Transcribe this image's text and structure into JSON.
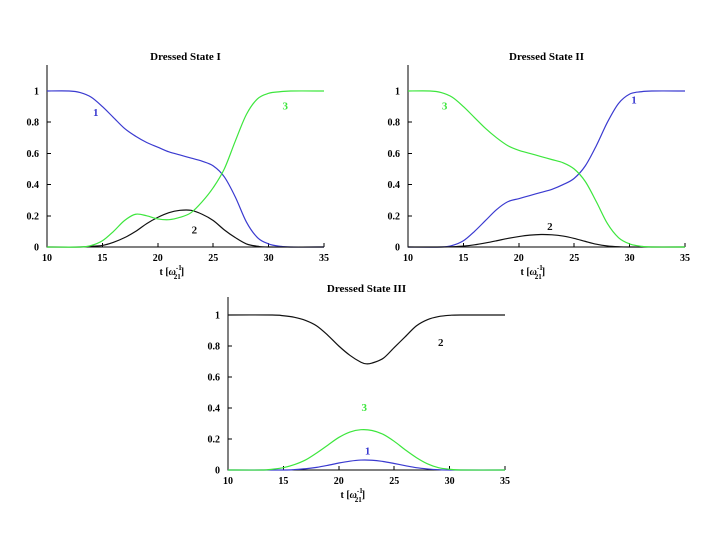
{
  "colors": {
    "1": "#3a3ad0",
    "2": "#111111",
    "3": "#3de63d"
  },
  "chart_data": [
    {
      "type": "line",
      "title": "Dressed State I",
      "xlabel_main": "t",
      "xlabel_sym": "ω",
      "xlabel_sub": "21",
      "xlabel_sup": "-1",
      "xlim": [
        10,
        35
      ],
      "ylim": [
        0,
        1.1
      ],
      "xticks": [
        "10",
        "15",
        "20",
        "25",
        "30",
        "35"
      ],
      "yticks": [
        "0",
        "0.2",
        "0.4",
        "0.6",
        "0.8",
        "1"
      ],
      "series": [
        {
          "name": "1",
          "label_pos": [
            14.4,
            0.84
          ],
          "x": [
            10,
            12,
            13,
            14,
            15,
            16,
            17,
            18,
            19,
            20,
            21,
            22,
            23,
            24,
            25,
            26,
            27,
            28,
            29,
            30,
            31,
            32,
            35
          ],
          "y": [
            1.0,
            1.0,
            0.99,
            0.96,
            0.9,
            0.83,
            0.76,
            0.71,
            0.67,
            0.64,
            0.61,
            0.59,
            0.57,
            0.55,
            0.52,
            0.45,
            0.32,
            0.16,
            0.06,
            0.02,
            0.005,
            0.0,
            0.0
          ]
        },
        {
          "name": "2",
          "label_pos": [
            23.3,
            0.085
          ],
          "x": [
            10,
            13,
            14,
            15,
            16,
            17,
            18,
            19,
            20,
            21,
            22,
            23,
            24,
            25,
            26,
            27,
            28,
            29,
            30,
            35
          ],
          "y": [
            0.0,
            0.0,
            0.005,
            0.01,
            0.03,
            0.06,
            0.1,
            0.15,
            0.19,
            0.22,
            0.235,
            0.235,
            0.21,
            0.17,
            0.11,
            0.06,
            0.02,
            0.005,
            0.0,
            0.0
          ]
        },
        {
          "name": "3",
          "label_pos": [
            31.5,
            0.88
          ],
          "x": [
            10,
            13,
            14,
            15,
            16,
            17,
            18,
            19,
            20,
            21,
            22,
            23,
            24,
            25,
            26,
            27,
            28,
            29,
            30,
            31,
            32,
            35
          ],
          "y": [
            0.0,
            0.0,
            0.01,
            0.04,
            0.1,
            0.17,
            0.21,
            0.2,
            0.18,
            0.175,
            0.19,
            0.22,
            0.29,
            0.38,
            0.5,
            0.68,
            0.85,
            0.95,
            0.985,
            0.995,
            1.0,
            1.0
          ]
        }
      ]
    },
    {
      "type": "line",
      "title": "Dressed State II",
      "xlabel_main": "t",
      "xlabel_sym": "ω",
      "xlabel_sub": "21",
      "xlabel_sup": "-1",
      "xlim": [
        10,
        35
      ],
      "ylim": [
        0,
        1.1
      ],
      "xticks": [
        "10",
        "15",
        "20",
        "25",
        "30",
        "35"
      ],
      "yticks": [
        "0",
        "0.2",
        "0.4",
        "0.6",
        "0.8",
        "1"
      ],
      "series": [
        {
          "name": "1",
          "label_pos": [
            30.4,
            0.92
          ],
          "x": [
            10,
            13,
            14,
            15,
            16,
            17,
            18,
            19,
            20,
            21,
            22,
            23,
            24,
            25,
            26,
            27,
            28,
            29,
            30,
            31,
            32,
            35
          ],
          "y": [
            0.0,
            0.0,
            0.01,
            0.04,
            0.1,
            0.17,
            0.24,
            0.29,
            0.31,
            0.33,
            0.35,
            0.37,
            0.4,
            0.44,
            0.52,
            0.65,
            0.8,
            0.92,
            0.98,
            0.995,
            1.0,
            1.0
          ]
        },
        {
          "name": "2",
          "label_pos": [
            22.8,
            0.11
          ],
          "x": [
            10,
            13,
            14,
            15,
            16,
            17,
            18,
            19,
            20,
            21,
            22,
            23,
            24,
            25,
            26,
            27,
            28,
            29,
            30,
            35
          ],
          "y": [
            0.0,
            0.0,
            0.002,
            0.006,
            0.014,
            0.026,
            0.04,
            0.055,
            0.067,
            0.076,
            0.08,
            0.078,
            0.07,
            0.055,
            0.036,
            0.018,
            0.007,
            0.002,
            0.0,
            0.0
          ]
        },
        {
          "name": "3",
          "label_pos": [
            13.3,
            0.88
          ],
          "x": [
            10,
            12,
            13,
            14,
            15,
            16,
            17,
            18,
            19,
            20,
            21,
            22,
            23,
            24,
            25,
            26,
            27,
            28,
            29,
            30,
            31,
            32,
            35
          ],
          "y": [
            1.0,
            1.0,
            0.99,
            0.96,
            0.9,
            0.83,
            0.76,
            0.7,
            0.65,
            0.62,
            0.6,
            0.58,
            0.56,
            0.54,
            0.5,
            0.42,
            0.29,
            0.15,
            0.06,
            0.02,
            0.005,
            0.0,
            0.0
          ]
        }
      ]
    },
    {
      "type": "line",
      "title": "Dressed State III",
      "xlabel_main": "t",
      "xlabel_sym": "ω",
      "xlabel_sub": "21",
      "xlabel_sup": "-1",
      "xlim": [
        10,
        35
      ],
      "ylim": [
        0,
        1.1
      ],
      "xticks": [
        "10",
        "15",
        "20",
        "25",
        "30",
        "35"
      ],
      "yticks": [
        "0",
        "0.2",
        "0.4",
        "0.6",
        "0.8",
        "1"
      ],
      "series": [
        {
          "name": "1",
          "label_pos": [
            22.6,
            0.1
          ],
          "x": [
            10,
            15,
            16,
            17,
            18,
            19,
            20,
            21,
            22,
            23,
            24,
            25,
            26,
            27,
            28,
            29,
            30,
            35
          ],
          "y": [
            0.0,
            0.0,
            0.003,
            0.008,
            0.017,
            0.03,
            0.045,
            0.057,
            0.064,
            0.063,
            0.055,
            0.042,
            0.028,
            0.015,
            0.007,
            0.002,
            0.0,
            0.0
          ]
        },
        {
          "name": "2",
          "label_pos": [
            29.2,
            0.8
          ],
          "x": [
            10,
            14,
            15,
            16,
            17,
            18,
            19,
            20,
            21,
            22,
            22.5,
            23,
            24,
            25,
            26,
            27,
            28,
            29,
            30,
            31,
            35
          ],
          "y": [
            1.0,
            1.0,
            0.995,
            0.985,
            0.965,
            0.93,
            0.87,
            0.8,
            0.74,
            0.695,
            0.685,
            0.69,
            0.72,
            0.79,
            0.86,
            0.93,
            0.97,
            0.99,
            0.998,
            1.0,
            1.0
          ]
        },
        {
          "name": "3",
          "label_pos": [
            22.3,
            0.38
          ],
          "x": [
            10,
            13,
            14,
            15,
            16,
            17,
            18,
            19,
            20,
            21,
            22,
            23,
            24,
            25,
            26,
            27,
            28,
            29,
            30,
            31,
            35
          ],
          "y": [
            0.0,
            0.0,
            0.005,
            0.015,
            0.035,
            0.065,
            0.11,
            0.16,
            0.21,
            0.245,
            0.26,
            0.255,
            0.23,
            0.185,
            0.13,
            0.08,
            0.04,
            0.015,
            0.005,
            0.0,
            0.0
          ]
        }
      ]
    }
  ]
}
